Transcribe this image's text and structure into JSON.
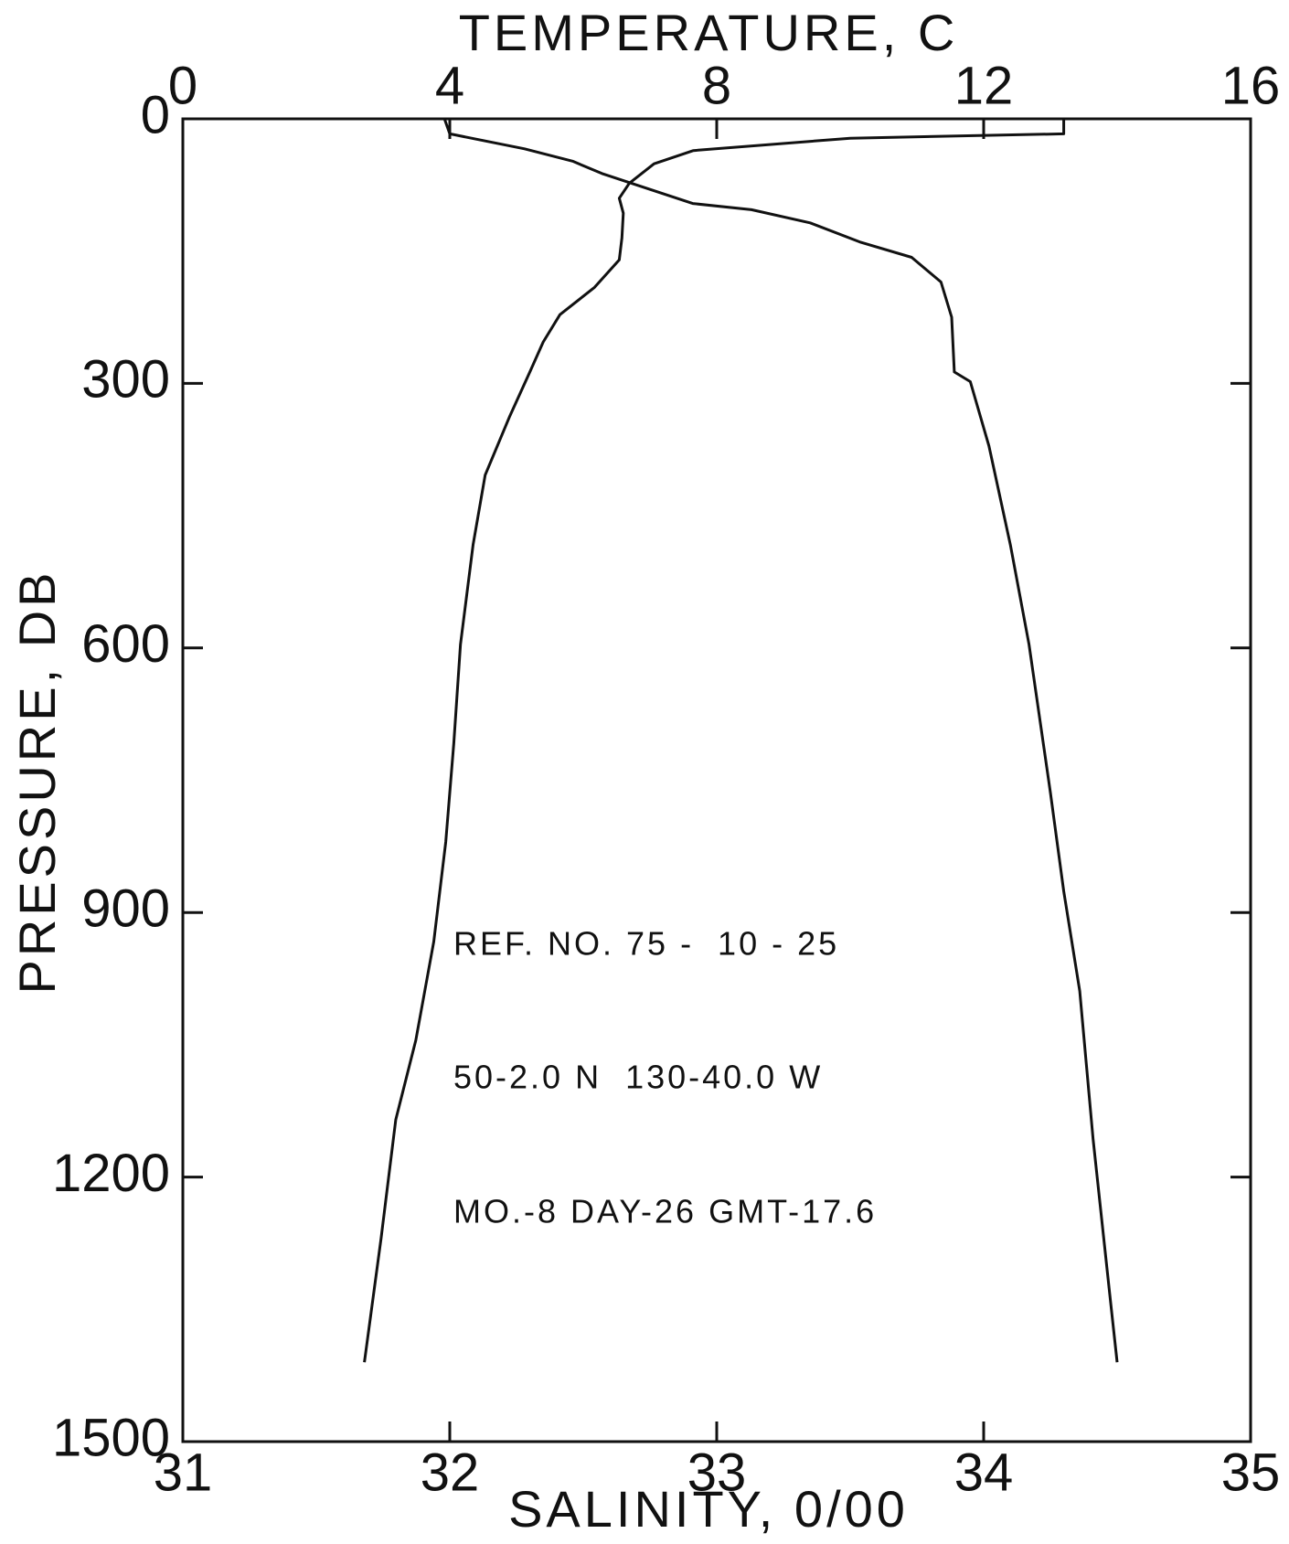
{
  "chart_data": {
    "type": "line",
    "x2_label": "TEMPERATURE, C",
    "x_label": "SALINITY, 0/00",
    "y_label": "PRESSURE, DB",
    "x2lim": [
      0,
      16
    ],
    "x2ticks": [
      0,
      4,
      8,
      12,
      16
    ],
    "xlim": [
      31,
      35
    ],
    "xticks": [
      31,
      32,
      33,
      34,
      35
    ],
    "ylim": [
      1500,
      0
    ],
    "yticks": [
      0,
      300,
      600,
      900,
      1200,
      1500
    ],
    "annotations": [
      "REF. NO. 75 -  10 - 25",
      "50-2.0 N  130-40.0 W",
      "MO.-8 DAY-26 GMT-17.6"
    ],
    "series": [
      {
        "color": "#111111",
        "axis": "x2",
        "values": [
          13.2,
          13.2,
          10.0,
          7.65,
          7.06,
          6.69,
          6.54,
          6.6,
          6.58,
          6.54,
          6.17,
          5.65,
          5.4,
          5.2,
          4.9,
          4.53,
          4.35,
          4.16,
          4.06,
          3.94,
          3.76,
          3.49,
          3.19,
          2.97,
          2.72
        ],
        "y": [
          0,
          17,
          22,
          36,
          51,
          73,
          90,
          107,
          135,
          160,
          191,
          222,
          253,
          287,
          337,
          404,
          483,
          596,
          708,
          820,
          933,
          1045,
          1135,
          1270,
          1410
        ]
      },
      {
        "color": "#111111",
        "axis": "x",
        "values": [
          31.98,
          32.0,
          32.28,
          32.46,
          32.57,
          32.68,
          32.91,
          33.13,
          33.35,
          33.54,
          33.73,
          33.84,
          33.88,
          33.89,
          33.95,
          34.02,
          34.1,
          34.17,
          34.25,
          34.3,
          34.36,
          34.41,
          34.47,
          34.5
        ],
        "y": [
          0,
          17,
          34,
          48,
          62,
          73,
          96,
          103,
          118,
          140,
          157,
          185,
          225,
          287,
          298,
          371,
          483,
          596,
          764,
          876,
          989,
          1157,
          1326,
          1410
        ]
      }
    ]
  }
}
